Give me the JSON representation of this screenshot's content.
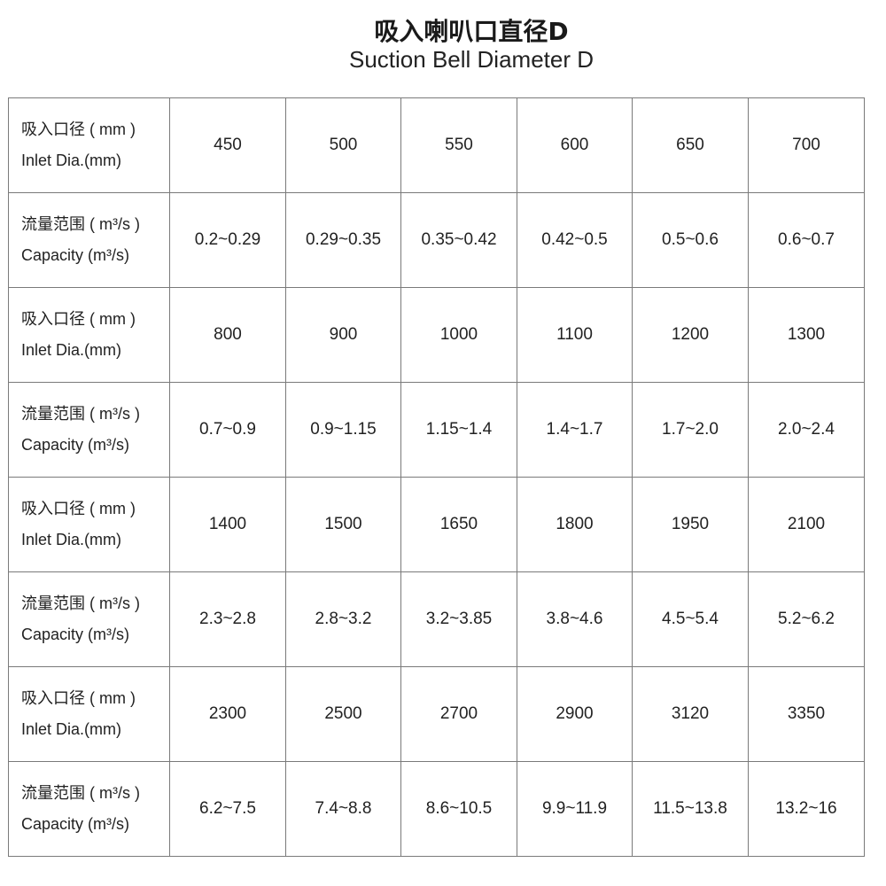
{
  "title": {
    "zh": "吸入喇叭口直径D",
    "en": "Suction Bell Diameter D"
  },
  "table": {
    "rows": [
      {
        "label_zh": "吸入口径 ( mm )",
        "label_en": "Inlet Dia.(mm)",
        "values": [
          "450",
          "500",
          "550",
          "600",
          "650",
          "700"
        ]
      },
      {
        "label_zh": "流量范围 ( m³/s )",
        "label_en": "Capacity (m³/s)",
        "values": [
          "0.2~0.29",
          "0.29~0.35",
          "0.35~0.42",
          "0.42~0.5",
          "0.5~0.6",
          "0.6~0.7"
        ]
      },
      {
        "label_zh": "吸入口径 ( mm )",
        "label_en": "Inlet Dia.(mm)",
        "values": [
          "800",
          "900",
          "1000",
          "1100",
          "1200",
          "1300"
        ]
      },
      {
        "label_zh": "流量范围 ( m³/s )",
        "label_en": "Capacity (m³/s)",
        "values": [
          "0.7~0.9",
          "0.9~1.15",
          "1.15~1.4",
          "1.4~1.7",
          "1.7~2.0",
          "2.0~2.4"
        ]
      },
      {
        "label_zh": "吸入口径 ( mm )",
        "label_en": "Inlet Dia.(mm)",
        "values": [
          "1400",
          "1500",
          "1650",
          "1800",
          "1950",
          "2100"
        ]
      },
      {
        "label_zh": "流量范围 ( m³/s )",
        "label_en": "Capacity (m³/s)",
        "values": [
          "2.3~2.8",
          "2.8~3.2",
          "3.2~3.85",
          "3.8~4.6",
          "4.5~5.4",
          "5.2~6.2"
        ]
      },
      {
        "label_zh": "吸入口径 ( mm )",
        "label_en": "Inlet Dia.(mm)",
        "values": [
          "2300",
          "2500",
          "2700",
          "2900",
          "3120",
          "3350"
        ]
      },
      {
        "label_zh": "流量范围 ( m³/s )",
        "label_en": "Capacity (m³/s)",
        "values": [
          "6.2~7.5",
          "7.4~8.8",
          "8.6~10.5",
          "9.9~11.9",
          "11.5~13.8",
          "13.2~16"
        ]
      }
    ]
  }
}
